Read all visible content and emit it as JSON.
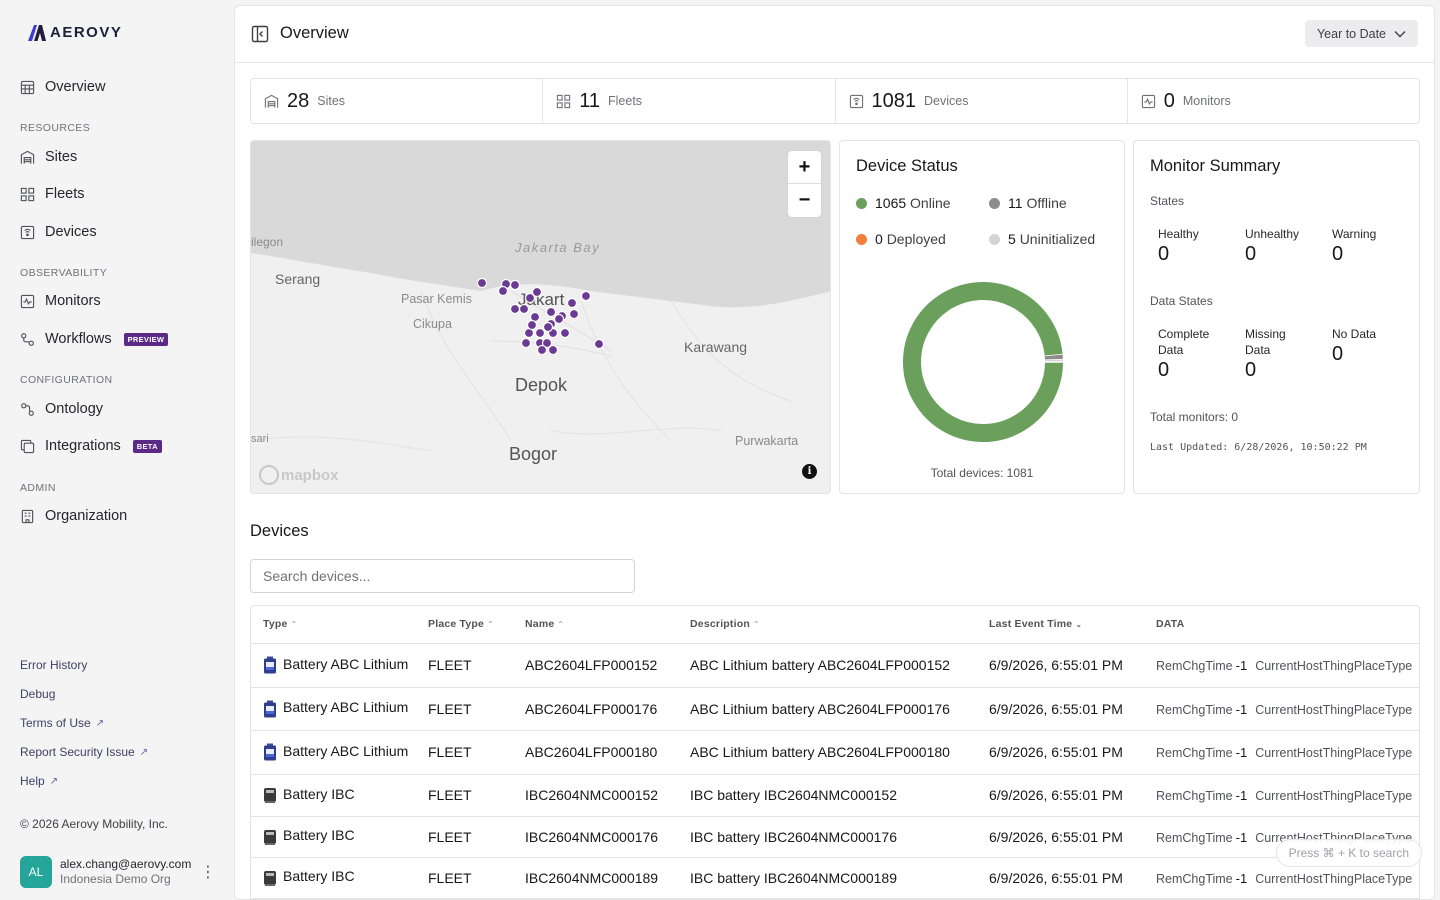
{
  "brand": {
    "name": "AERΟVY"
  },
  "sidebar": {
    "overview": "Overview",
    "sections": {
      "resources": "RESOURCES",
      "observability": "OBSERVABILITY",
      "configuration": "CONFIGURATION",
      "admin": "ADMIN"
    },
    "items": {
      "sites": "Sites",
      "fleets": "Fleets",
      "devices": "Devices",
      "monitors": "Monitors",
      "workflows": "Workflows",
      "workflows_badge": "PREVIEW",
      "ontology": "Ontology",
      "integrations": "Integrations",
      "integrations_badge": "BETA",
      "organization": "Organization"
    },
    "footer": {
      "error_history": "Error History",
      "debug": "Debug",
      "terms": "Terms of Use",
      "report_security": "Report Security Issue",
      "help": "Help",
      "copyright": "© 2026 Aerovy Mobility, Inc."
    },
    "user": {
      "initials": "AL",
      "email": "alex.chang@aerovy.com",
      "org": "Indonesia Demo Org"
    }
  },
  "header": {
    "title": "Overview",
    "range": "Year to Date"
  },
  "stats": {
    "sites": {
      "value": "28",
      "label": "Sites"
    },
    "fleets": {
      "value": "11",
      "label": "Fleets"
    },
    "devices": {
      "value": "1081",
      "label": "Devices"
    },
    "monitors": {
      "value": "0",
      "label": "Monitors"
    }
  },
  "map": {
    "places": [
      "ilegon",
      "Serang",
      "Jakarta Bay",
      "Pasar Kemis",
      "Jakart",
      "Cikupa",
      "Karawang",
      "Depok",
      "sari",
      "Bogor",
      "Purwakarta"
    ],
    "attribution": "mapbox"
  },
  "device_status": {
    "title": "Device Status",
    "online": {
      "count": "1065",
      "label": "Online",
      "color": "#6a9f5c"
    },
    "offline": {
      "count": "11",
      "label": "Offline",
      "color": "#8c8c8c"
    },
    "deployed": {
      "count": "0",
      "label": "Deployed",
      "color": "#f0803c"
    },
    "uninitialized": {
      "count": "5",
      "label": "Uninitialized",
      "color": "#d4d4d4"
    },
    "total": "Total devices: 1081"
  },
  "monitor_summary": {
    "title": "Monitor Summary",
    "states_label": "States",
    "healthy": {
      "label": "Healthy",
      "value": "0"
    },
    "unhealthy": {
      "label": "Unhealthy",
      "value": "0"
    },
    "warning": {
      "label": "Warning",
      "value": "0"
    },
    "data_states_label": "Data States",
    "complete": {
      "label1": "Complete",
      "label2": "Data",
      "value": "0"
    },
    "missing": {
      "label1": "Missing",
      "label2": "Data",
      "value": "0"
    },
    "nodata": {
      "label": "No Data",
      "value": "0"
    },
    "total": "Total monitors: 0",
    "updated": "Last Updated: 6/28/2026, 10:50:22 PM"
  },
  "devices_section": {
    "title": "Devices",
    "search_placeholder": "Search devices...",
    "columns": {
      "type": "Type",
      "place_type": "Place Type",
      "name": "Name",
      "description": "Description",
      "last_event": "Last Event Time",
      "data": "DATA"
    },
    "rows": [
      {
        "type": "Battery ABC Lithium",
        "place_type": "FLEET",
        "name": "ABC2604LFP000152",
        "description": "ABC Lithium battery ABC2604LFP000152",
        "last_event": "6/9/2026, 6:55:01 PM",
        "k1": "RemChgTime",
        "v1": "-1",
        "k2": "CurrentHostThingPlaceType"
      },
      {
        "type": "Battery ABC Lithium",
        "place_type": "FLEET",
        "name": "ABC2604LFP000176",
        "description": "ABC Lithium battery ABC2604LFP000176",
        "last_event": "6/9/2026, 6:55:01 PM",
        "k1": "RemChgTime",
        "v1": "-1",
        "k2": "CurrentHostThingPlaceType"
      },
      {
        "type": "Battery ABC Lithium",
        "place_type": "FLEET",
        "name": "ABC2604LFP000180",
        "description": "ABC Lithium battery ABC2604LFP000180",
        "last_event": "6/9/2026, 6:55:01 PM",
        "k1": "RemChgTime",
        "v1": "-1",
        "k2": "CurrentHostThingPlaceType"
      },
      {
        "type": "Battery IBC",
        "place_type": "FLEET",
        "name": "IBC2604NMC000152",
        "description": "IBC battery IBC2604NMC000152",
        "last_event": "6/9/2026, 6:55:01 PM",
        "k1": "RemChgTime",
        "v1": "-1",
        "k2": "CurrentHostThingPlaceType"
      },
      {
        "type": "Battery IBC",
        "place_type": "FLEET",
        "name": "IBC2604NMC000176",
        "description": "IBC battery IBC2604NMC000176",
        "last_event": "6/9/2026, 6:55:01 PM",
        "k1": "RemChgTime",
        "v1": "-1",
        "k2": "CurrentHostThingPlaceType"
      },
      {
        "type": "Battery IBC",
        "place_type": "FLEET",
        "name": "IBC2604NMC000189",
        "description": "IBC battery IBC2604NMC000189",
        "last_event": "6/9/2026, 6:55:01 PM",
        "k1": "RemChgTime",
        "v1": "-1",
        "k2": "CurrentHostThingPlaceType"
      }
    ]
  },
  "command_hint": "Press ⌘ + K to search"
}
